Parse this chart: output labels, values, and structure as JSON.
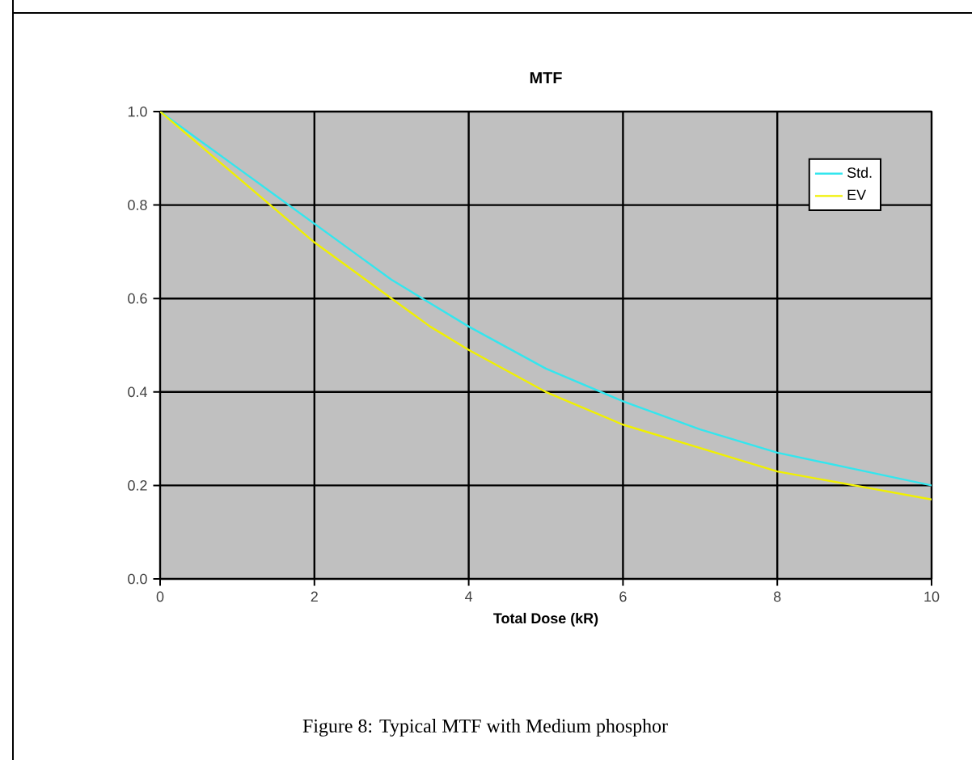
{
  "chart_data": {
    "type": "line",
    "title": "MTF",
    "xlabel": "Total Dose (kR)",
    "annotations": [
      "Figure 8: Typical MTF with Medium phosphor"
    ],
    "x": [
      0,
      0.5,
      1,
      1.5,
      2,
      2.5,
      3,
      3.5,
      4,
      5,
      6,
      7,
      8,
      9,
      10
    ],
    "series": [
      {
        "name": "Std.",
        "color": "#33e6ee",
        "values": [
          1.0,
          0.94,
          0.88,
          0.82,
          0.76,
          0.7,
          0.64,
          0.59,
          0.54,
          0.45,
          0.38,
          0.32,
          0.27,
          0.235,
          0.2
        ]
      },
      {
        "name": "EV",
        "color": "#f0f000",
        "values": [
          1.0,
          0.93,
          0.86,
          0.79,
          0.72,
          0.66,
          0.6,
          0.54,
          0.49,
          0.4,
          0.33,
          0.28,
          0.23,
          0.2,
          0.17
        ]
      }
    ],
    "xlim": [
      0,
      10
    ],
    "xticks": [
      0,
      2,
      4,
      6,
      8,
      10
    ],
    "ylim": [
      0,
      1
    ],
    "yticks": [
      {
        "value": 0,
        "label": "0.0"
      },
      {
        "value": 0.2,
        "label": "0.2"
      },
      {
        "value": 0.4,
        "label": "0.4"
      },
      {
        "value": 0.6,
        "label": "0.6"
      },
      {
        "value": 0.8,
        "label": "0.8"
      },
      {
        "value": 1,
        "label": "1.0"
      }
    ],
    "grid": true,
    "legend": "top right",
    "marker": "none",
    "line_style": "solid"
  }
}
